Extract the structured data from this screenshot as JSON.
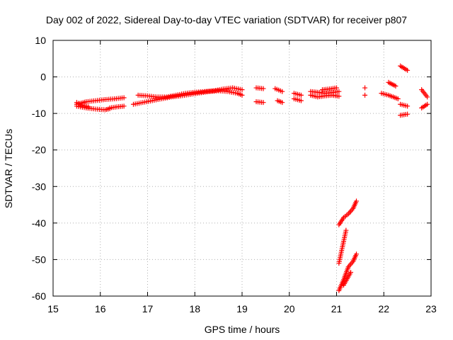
{
  "chart_data": {
    "type": "scatter",
    "title": "Day 002 of 2022, Sidereal Day-to-day VTEC variation (SDTVAR) for receiver p807",
    "xlabel": "GPS time / hours",
    "ylabel": "SDTVAR / TECUs",
    "xlim": [
      15,
      23
    ],
    "ylim": [
      -60,
      10
    ],
    "xticks": [
      "15",
      "16",
      "17",
      "18",
      "19",
      "20",
      "21",
      "22",
      "23"
    ],
    "yticks": [
      "10",
      "0",
      "-10",
      "-20",
      "-30",
      "-40",
      "-50",
      "-60"
    ],
    "grid": true,
    "marker": "+",
    "marker_color": "#ff0000",
    "segments": [
      {
        "x": [
          15.5,
          15.7,
          15.9,
          16.1,
          16.3,
          16.5
        ],
        "y": [
          -7.5,
          -6.8,
          -6.5,
          -6.2,
          -6.0,
          -5.7
        ]
      },
      {
        "x": [
          15.5,
          15.7,
          15.9,
          16.1,
          16.2
        ],
        "y": [
          -8.0,
          -8.5,
          -8.8,
          -9.0,
          -8.7
        ]
      },
      {
        "x": [
          15.5,
          15.6,
          15.75
        ],
        "y": [
          -7.0,
          -7.7,
          -8.2
        ]
      },
      {
        "x": [
          16.2,
          16.35,
          16.5
        ],
        "y": [
          -8.5,
          -8.2,
          -8.0
        ]
      },
      {
        "x": [
          16.8,
          17.0,
          17.2,
          17.4,
          17.6,
          17.8,
          18.0,
          18.2,
          18.4,
          18.6,
          18.8,
          19.0
        ],
        "y": [
          -5.0,
          -5.2,
          -5.5,
          -5.5,
          -5.0,
          -4.5,
          -4.2,
          -4.0,
          -3.8,
          -3.3,
          -3.0,
          -3.5
        ]
      },
      {
        "x": [
          16.7,
          16.9,
          17.1,
          17.3,
          17.5,
          17.7,
          17.9,
          18.1,
          18.3,
          18.5,
          18.7,
          18.9,
          19.0
        ],
        "y": [
          -7.5,
          -7.0,
          -6.5,
          -6.0,
          -5.5,
          -5.2,
          -4.8,
          -4.4,
          -4.0,
          -3.8,
          -4.0,
          -4.5,
          -5.0
        ]
      },
      {
        "x": [
          19.3,
          19.45
        ],
        "y": [
          -3.0,
          -3.2
        ]
      },
      {
        "x": [
          19.3,
          19.45
        ],
        "y": [
          -6.8,
          -7.0
        ]
      },
      {
        "x": [
          19.7,
          19.85
        ],
        "y": [
          -3.2,
          -4.0
        ]
      },
      {
        "x": [
          19.75,
          19.85
        ],
        "y": [
          -6.5,
          -7.0
        ]
      },
      {
        "x": [
          20.1,
          20.25
        ],
        "y": [
          -4.5,
          -5.0
        ]
      },
      {
        "x": [
          20.1,
          20.25
        ],
        "y": [
          -6.0,
          -6.5
        ]
      },
      {
        "x": [
          20.45,
          20.6,
          20.75,
          20.9,
          21.05
        ],
        "y": [
          -4.0,
          -4.2,
          -4.5,
          -4.3,
          -4.0
        ]
      },
      {
        "x": [
          20.45,
          20.6,
          20.75,
          20.9,
          21.05
        ],
        "y": [
          -5.0,
          -5.5,
          -5.2,
          -5.0,
          -5.3
        ]
      },
      {
        "x": [
          20.7,
          20.85,
          21.0
        ],
        "y": [
          -3.5,
          -3.3,
          -3.0
        ]
      },
      {
        "x": [
          21.6
        ],
        "y": [
          -3.0
        ]
      },
      {
        "x": [
          21.6
        ],
        "y": [
          -5.0
        ]
      },
      {
        "x": [
          21.95,
          22.1,
          22.3
        ],
        "y": [
          -4.5,
          -5.0,
          -6.0
        ]
      },
      {
        "x": [
          22.1,
          22.25
        ],
        "y": [
          -1.5,
          -2.5
        ]
      },
      {
        "x": [
          22.35,
          22.5
        ],
        "y": [
          3.0,
          1.8
        ]
      },
      {
        "x": [
          22.35,
          22.5
        ],
        "y": [
          -7.5,
          -8.0
        ]
      },
      {
        "x": [
          22.35,
          22.5
        ],
        "y": [
          -10.5,
          -10.2
        ]
      },
      {
        "x": [
          22.8,
          22.92
        ],
        "y": [
          -3.5,
          -5.5
        ]
      },
      {
        "x": [
          22.8,
          22.92
        ],
        "y": [
          -8.5,
          -7.5
        ]
      },
      {
        "x": [
          21.05,
          21.15,
          21.25,
          21.35,
          21.42
        ],
        "y": [
          -40.5,
          -38.5,
          -37.5,
          -36.0,
          -34.0
        ]
      },
      {
        "x": [
          21.05,
          21.1,
          21.15,
          21.2
        ],
        "y": [
          -51.0,
          -48.0,
          -45.0,
          -42.0
        ]
      },
      {
        "x": [
          21.05,
          21.15,
          21.25,
          21.35,
          21.42
        ],
        "y": [
          -58.5,
          -55.5,
          -52.0,
          -50.5,
          -48.5
        ]
      },
      {
        "x": [
          21.15,
          21.3
        ],
        "y": [
          -57.0,
          -53.5
        ]
      }
    ]
  }
}
